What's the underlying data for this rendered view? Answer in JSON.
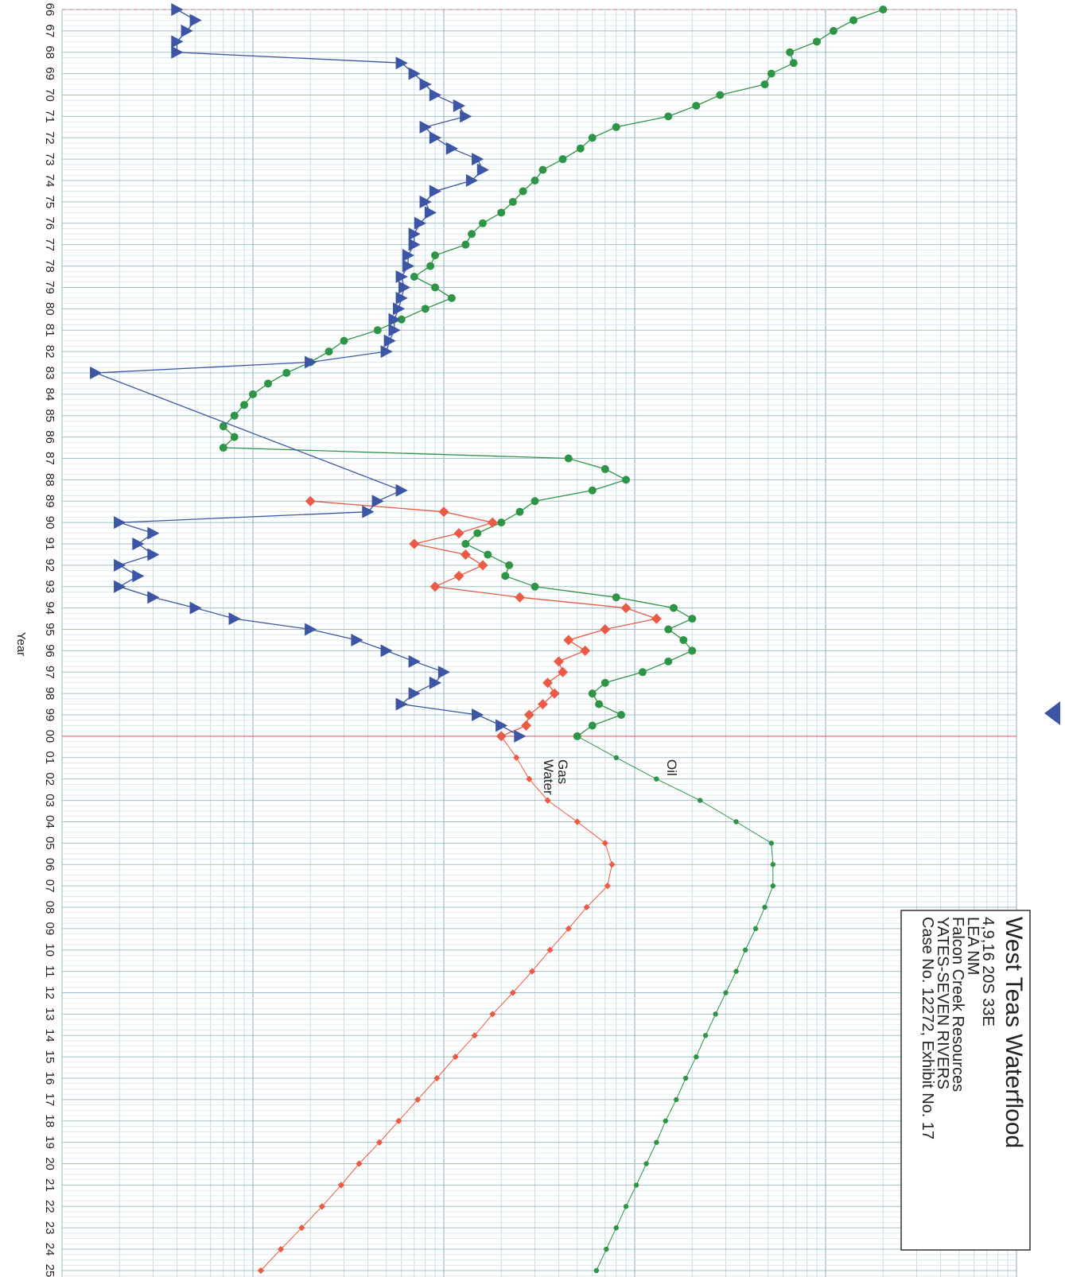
{
  "chart_data": {
    "type": "scatter",
    "title": "West Teas Waterflood",
    "subtitle_lines": [
      "4,9,16 20S 33E",
      "LEA NM",
      "Falcon Creek Resources",
      "YATES-SEVEN RIVERS",
      "Case No. 12272, Exhibit No. 17"
    ],
    "xlabel": "Year",
    "x_tick_labels": [
      "66",
      "67",
      "68",
      "69",
      "70",
      "71",
      "72",
      "73",
      "74",
      "75",
      "76",
      "77",
      "78",
      "79",
      "80",
      "81",
      "82",
      "83",
      "84",
      "85",
      "86",
      "87",
      "88",
      "89",
      "90",
      "91",
      "92",
      "93",
      "94",
      "95",
      "96",
      "97",
      "98",
      "99",
      "00",
      "01",
      "02",
      "03",
      "04",
      "05",
      "06",
      "07",
      "08",
      "09",
      "10",
      "11",
      "12",
      "13",
      "14",
      "15",
      "16",
      "17",
      "18",
      "19",
      "20",
      "21",
      "22",
      "23",
      "24",
      "25"
    ],
    "xlim": [
      1966,
      2025.3
    ],
    "y_scale": "log",
    "ylim": [
      1,
      100000
    ],
    "grid": true,
    "forecast_start_year": 2000,
    "series": [
      {
        "name": "Oil",
        "color": "#2e9446",
        "marker": "circle",
        "history": [
          [
            1966.0,
            20000
          ],
          [
            1966.5,
            14000
          ],
          [
            1967.0,
            11000
          ],
          [
            1967.5,
            9000
          ],
          [
            1968.0,
            6500
          ],
          [
            1968.5,
            6800
          ],
          [
            1969.0,
            5200
          ],
          [
            1969.5,
            4800
          ],
          [
            1970.0,
            2800
          ],
          [
            1970.5,
            2100
          ],
          [
            1971.0,
            1500
          ],
          [
            1971.5,
            800
          ],
          [
            1972.0,
            600
          ],
          [
            1972.5,
            520
          ],
          [
            1973.0,
            420
          ],
          [
            1973.5,
            330
          ],
          [
            1974.0,
            300
          ],
          [
            1974.5,
            260
          ],
          [
            1975.0,
            230
          ],
          [
            1975.5,
            200
          ],
          [
            1976.0,
            160
          ],
          [
            1976.5,
            140
          ],
          [
            1977.0,
            130
          ],
          [
            1977.5,
            90
          ],
          [
            1978.0,
            85
          ],
          [
            1978.5,
            70
          ],
          [
            1979.0,
            90
          ],
          [
            1979.5,
            110
          ],
          [
            1980.0,
            80
          ],
          [
            1980.5,
            60
          ],
          [
            1981.0,
            45
          ],
          [
            1981.5,
            30
          ],
          [
            1982.0,
            25
          ],
          [
            1982.5,
            20
          ],
          [
            1983.0,
            15
          ],
          [
            1983.5,
            12
          ],
          [
            1984.0,
            10
          ],
          [
            1984.5,
            9
          ],
          [
            1985.0,
            8
          ],
          [
            1985.5,
            7
          ],
          [
            1986.0,
            8
          ],
          [
            1986.5,
            7
          ],
          [
            1987.0,
            450
          ],
          [
            1987.5,
            700
          ],
          [
            1988.0,
            900
          ],
          [
            1988.5,
            600
          ],
          [
            1989.0,
            300
          ],
          [
            1989.5,
            250
          ],
          [
            1990.0,
            200
          ],
          [
            1990.5,
            150
          ],
          [
            1991.0,
            130
          ],
          [
            1991.5,
            170
          ],
          [
            1992.0,
            220
          ],
          [
            1992.5,
            210
          ],
          [
            1993.0,
            300
          ],
          [
            1993.5,
            800
          ],
          [
            1994.0,
            1600
          ],
          [
            1994.5,
            2000
          ],
          [
            1995.0,
            1500
          ],
          [
            1995.5,
            1800
          ],
          [
            1996.0,
            2000
          ],
          [
            1996.5,
            1500
          ],
          [
            1997.0,
            1100
          ],
          [
            1997.5,
            700
          ],
          [
            1998.0,
            600
          ],
          [
            1998.5,
            650
          ],
          [
            1999.0,
            850
          ],
          [
            1999.5,
            600
          ],
          [
            2000.0,
            500
          ]
        ],
        "forecast": [
          [
            2000.0,
            500
          ],
          [
            2001.0,
            800
          ],
          [
            2002.0,
            1300
          ],
          [
            2003.0,
            2200
          ],
          [
            2004.0,
            3400
          ],
          [
            2005.0,
            5200
          ],
          [
            2006.0,
            5300
          ],
          [
            2007.0,
            5300
          ],
          [
            2008.0,
            4800
          ],
          [
            2009.0,
            4300
          ],
          [
            2010.0,
            3800
          ],
          [
            2011.0,
            3400
          ],
          [
            2012.0,
            3000
          ],
          [
            2013.0,
            2650
          ],
          [
            2014.0,
            2350
          ],
          [
            2015.0,
            2100
          ],
          [
            2016.0,
            1850
          ],
          [
            2017.0,
            1650
          ],
          [
            2018.0,
            1450
          ],
          [
            2019.0,
            1300
          ],
          [
            2020.0,
            1150
          ],
          [
            2021.0,
            1020
          ],
          [
            2022.0,
            900
          ],
          [
            2023.0,
            800
          ],
          [
            2024.0,
            710
          ],
          [
            2025.0,
            630
          ]
        ]
      },
      {
        "name": "Gas",
        "color": "#ea5a45",
        "marker": "diamond",
        "history": [
          [
            1989.0,
            20
          ],
          [
            1989.5,
            100
          ],
          [
            1990.0,
            180
          ],
          [
            1990.5,
            120
          ],
          [
            1991.0,
            70
          ],
          [
            1991.5,
            130
          ],
          [
            1992.0,
            160
          ],
          [
            1992.5,
            120
          ],
          [
            1993.0,
            90
          ],
          [
            1993.5,
            250
          ],
          [
            1994.0,
            900
          ],
          [
            1994.5,
            1300
          ],
          [
            1995.0,
            700
          ],
          [
            1995.5,
            450
          ],
          [
            1996.0,
            550
          ],
          [
            1996.5,
            400
          ],
          [
            1997.0,
            420
          ],
          [
            1997.5,
            350
          ],
          [
            1998.0,
            380
          ],
          [
            1998.5,
            330
          ],
          [
            1999.0,
            280
          ],
          [
            1999.5,
            270
          ],
          [
            2000.0,
            200
          ]
        ],
        "forecast": [
          [
            2000.0,
            200
          ],
          [
            2001.0,
            240
          ],
          [
            2002.0,
            280
          ],
          [
            2003.0,
            350
          ],
          [
            2004.0,
            500
          ],
          [
            2005.0,
            700
          ],
          [
            2006.0,
            760
          ],
          [
            2007.0,
            720
          ],
          [
            2008.0,
            560
          ],
          [
            2009.0,
            450
          ],
          [
            2010.0,
            360
          ],
          [
            2011.0,
            290
          ],
          [
            2012.0,
            230
          ],
          [
            2013.0,
            180
          ],
          [
            2014.0,
            145
          ],
          [
            2015.0,
            115
          ],
          [
            2016.0,
            92
          ],
          [
            2017.0,
            73
          ],
          [
            2018.0,
            58
          ],
          [
            2019.0,
            46
          ],
          [
            2020.0,
            36
          ],
          [
            2021.0,
            29
          ],
          [
            2022.0,
            23
          ],
          [
            2023.0,
            18
          ],
          [
            2024.0,
            14
          ],
          [
            2025.0,
            11
          ]
        ]
      },
      {
        "name": "Water",
        "color": "#3c55a5",
        "marker": "triangle",
        "history": [
          [
            1966.0,
            4
          ],
          [
            1966.5,
            5
          ],
          [
            1967.0,
            4.5
          ],
          [
            1967.5,
            4
          ],
          [
            1968.0,
            4
          ],
          [
            1968.5,
            60
          ],
          [
            1969.0,
            70
          ],
          [
            1969.5,
            80
          ],
          [
            1970.0,
            90
          ],
          [
            1970.5,
            120
          ],
          [
            1971.0,
            130
          ],
          [
            1971.5,
            80
          ],
          [
            1972.0,
            90
          ],
          [
            1972.5,
            110
          ],
          [
            1973.0,
            150
          ],
          [
            1973.5,
            160
          ],
          [
            1974.0,
            140
          ],
          [
            1974.5,
            90
          ],
          [
            1975.0,
            80
          ],
          [
            1975.5,
            85
          ],
          [
            1976.0,
            75
          ],
          [
            1976.5,
            70
          ],
          [
            1977.0,
            70
          ],
          [
            1977.5,
            65
          ],
          [
            1978.0,
            65
          ],
          [
            1978.5,
            60
          ],
          [
            1979.0,
            62
          ],
          [
            1979.5,
            60
          ],
          [
            1980.0,
            58
          ],
          [
            1980.5,
            55
          ],
          [
            1981.0,
            55
          ],
          [
            1981.5,
            52
          ],
          [
            1982.0,
            50
          ],
          [
            1982.5,
            20
          ],
          [
            1983.0,
            1.5
          ],
          [
            1988.5,
            60
          ],
          [
            1989.0,
            45
          ],
          [
            1989.5,
            40
          ],
          [
            1990.0,
            2
          ],
          [
            1990.5,
            3
          ],
          [
            1991.0,
            2.5
          ],
          [
            1991.5,
            3
          ],
          [
            1992.0,
            2
          ],
          [
            1992.5,
            2.5
          ],
          [
            1993.0,
            2
          ],
          [
            1993.5,
            3
          ],
          [
            1994.0,
            5
          ],
          [
            1994.5,
            8
          ],
          [
            1995.0,
            20
          ],
          [
            1995.5,
            35
          ],
          [
            1996.0,
            50
          ],
          [
            1996.5,
            70
          ],
          [
            1997.0,
            100
          ],
          [
            1997.5,
            90
          ],
          [
            1998.0,
            70
          ],
          [
            1998.5,
            60
          ],
          [
            1999.0,
            150
          ],
          [
            1999.5,
            200
          ],
          [
            2000.0,
            250
          ]
        ]
      }
    ]
  }
}
